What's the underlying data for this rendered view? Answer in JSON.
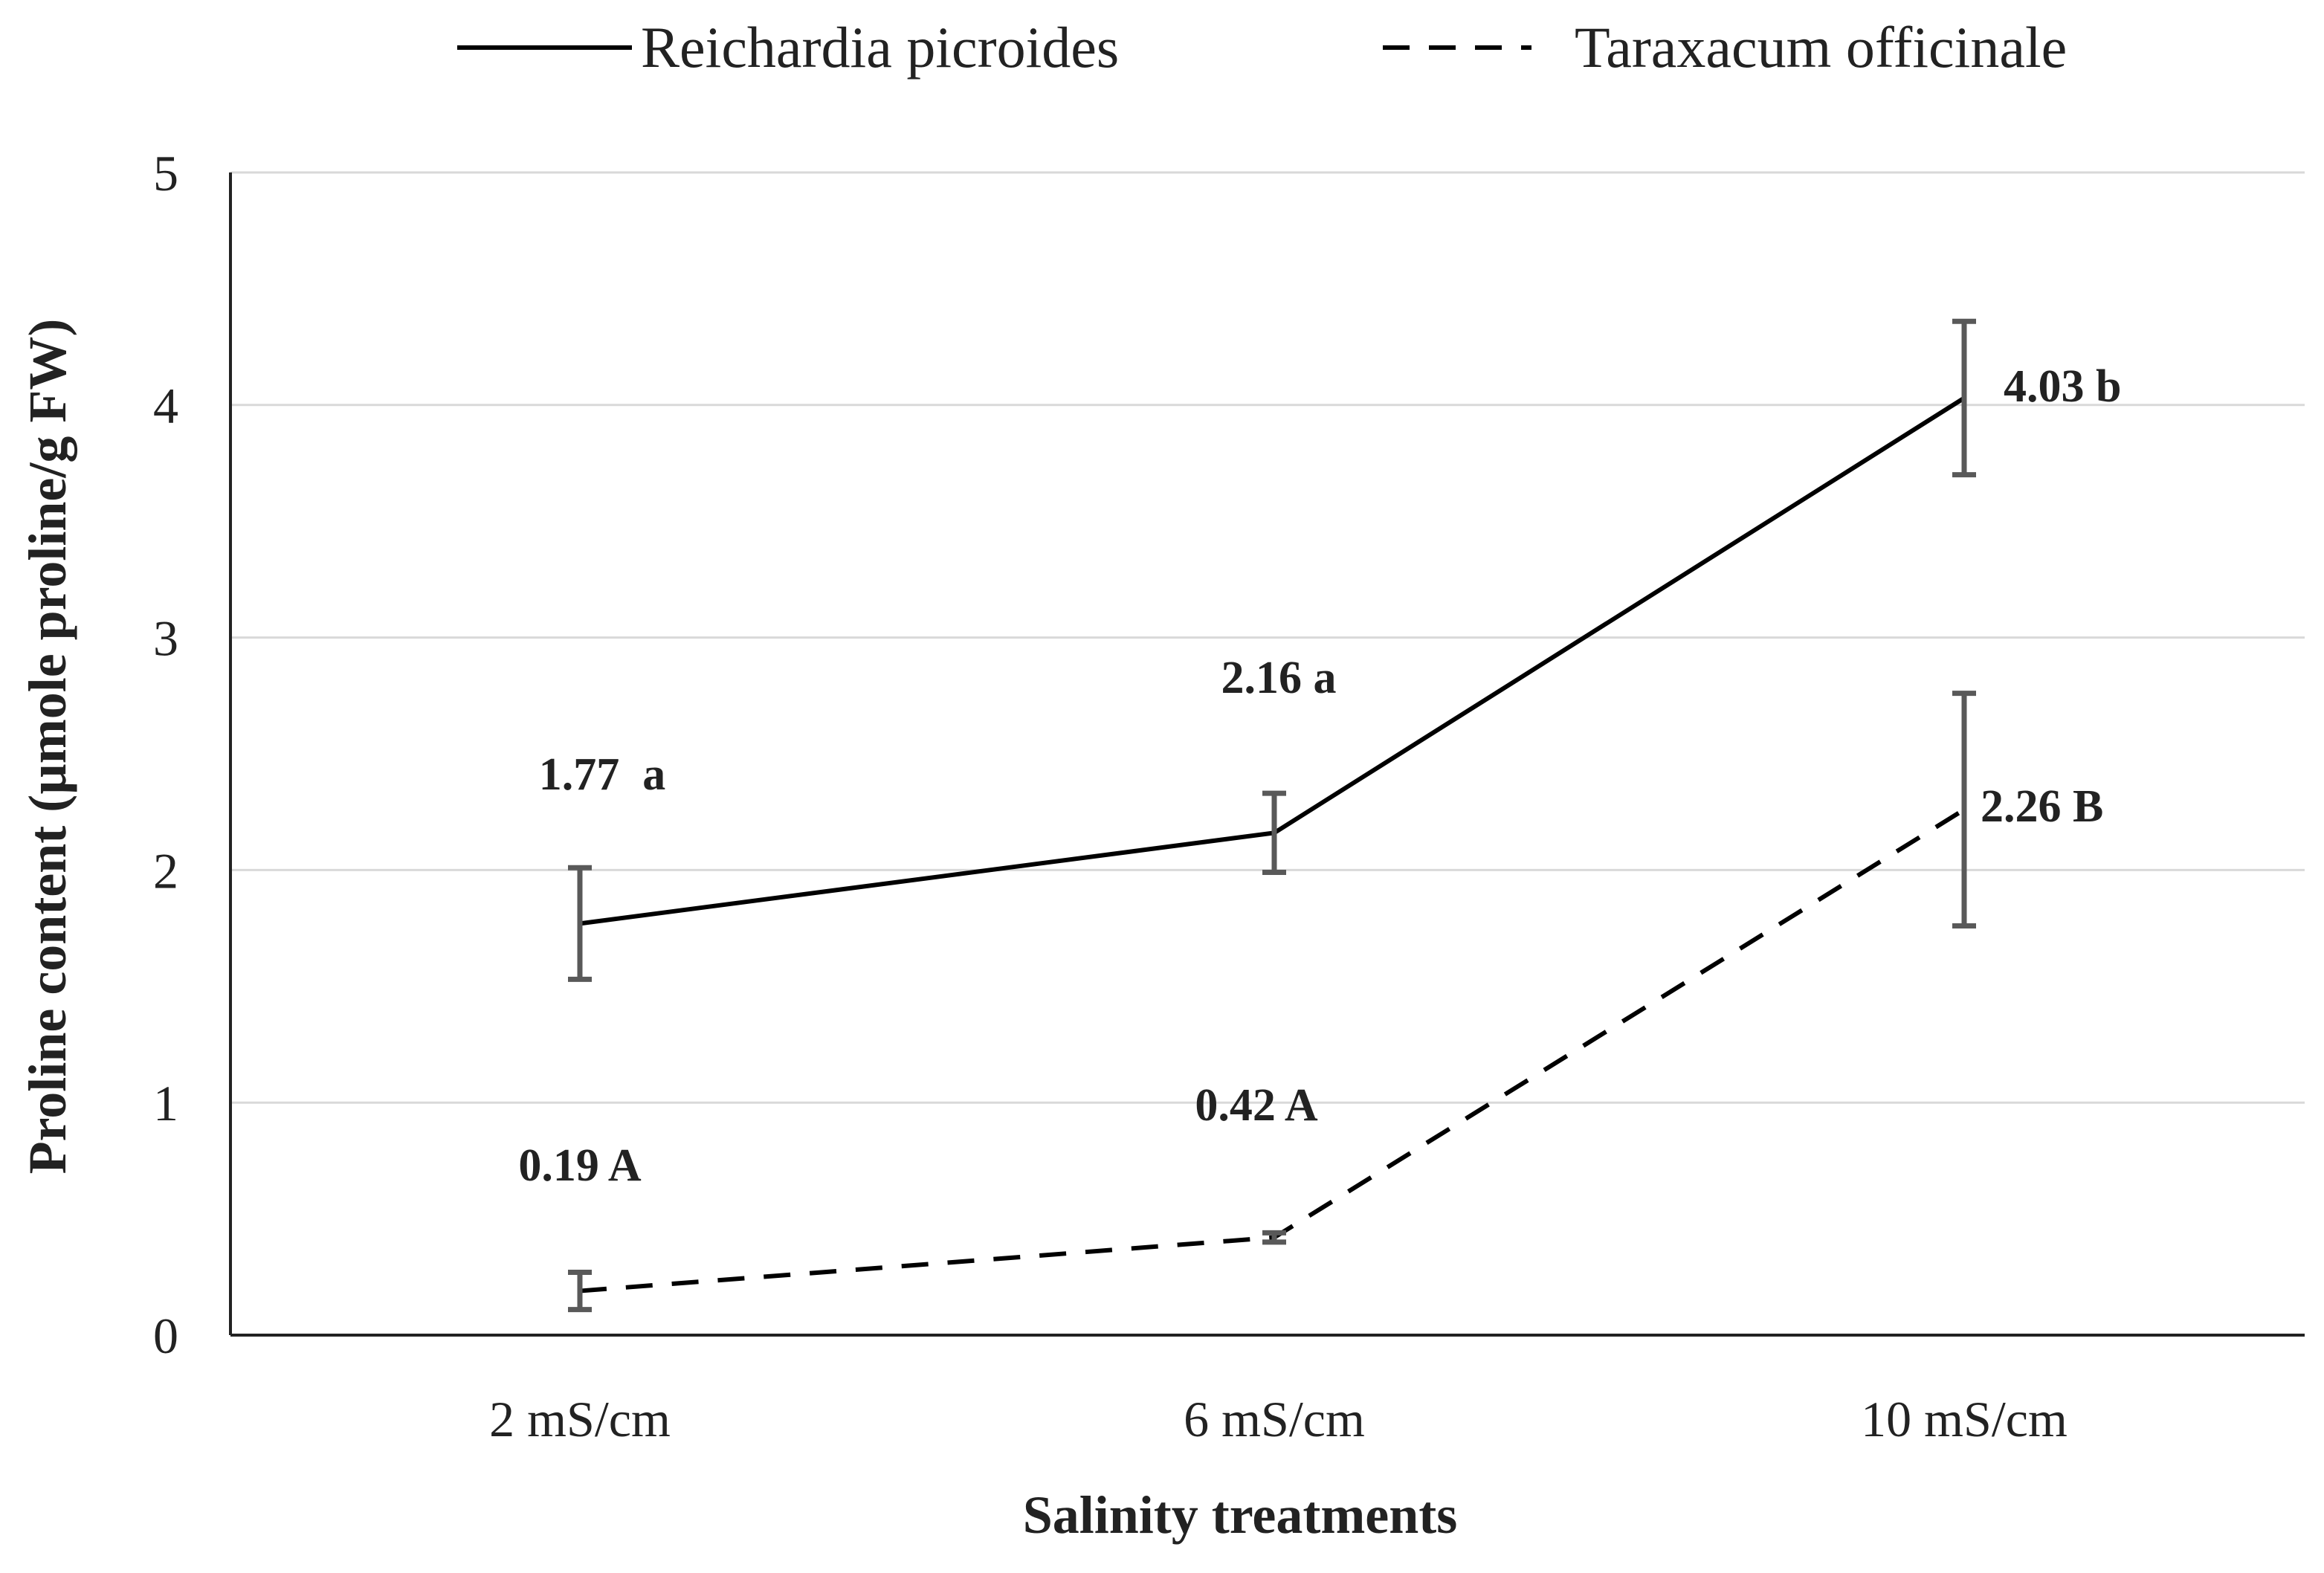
{
  "chart_data": {
    "type": "line",
    "title": "",
    "xlabel": "Salinity treatments",
    "ylabel": "Proline content (µmole proline/g FW)",
    "categories": [
      "2 mS/cm",
      "6 mS/cm",
      "10 mS/cm"
    ],
    "ylim": [
      0,
      5
    ],
    "yticks": [
      "0",
      "1",
      "2",
      "3",
      "4",
      "5"
    ],
    "grid": true,
    "legend_position": "top",
    "series": [
      {
        "name": "Reichardia picroides",
        "style": "solid",
        "values": [
          1.77,
          2.16,
          4.03
        ],
        "errors": [
          0.24,
          0.17,
          0.33
        ],
        "labels": [
          "1.77  a",
          "2.16 a",
          "4.03 b"
        ]
      },
      {
        "name": "Taraxacum officinale",
        "style": "dashed",
        "values": [
          0.19,
          0.42,
          2.26
        ],
        "errors": [
          0.08,
          0.02,
          0.5
        ],
        "labels": [
          "0.19 A",
          "0.42 A",
          "2.26 B"
        ]
      }
    ]
  }
}
